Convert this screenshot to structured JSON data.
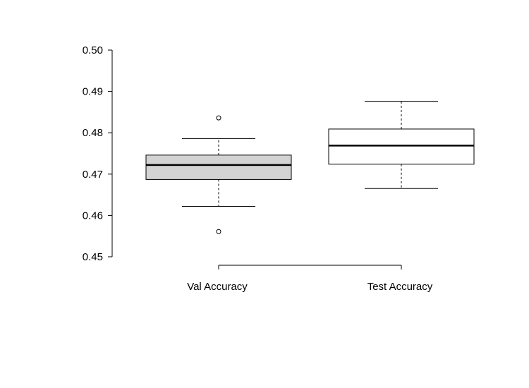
{
  "chart_data": {
    "type": "box",
    "title": "",
    "xlabel": "",
    "ylabel": "",
    "ylim": [
      0.45,
      0.5
    ],
    "yticks": [
      "0.45",
      "0.46",
      "0.47",
      "0.48",
      "0.49",
      "0.50"
    ],
    "grid": false,
    "categories": [
      "Val Accuracy",
      "Test Accuracy"
    ],
    "boxes": [
      {
        "category": "Val Accuracy",
        "whisker_low": 0.4622,
        "q1": 0.4687,
        "median": 0.4722,
        "q3": 0.4746,
        "whisker_high": 0.4786,
        "outliers": [
          0.4836,
          0.4561
        ],
        "fill": "#d3d3d3"
      },
      {
        "category": "Test Accuracy",
        "whisker_low": 0.4665,
        "q1": 0.4724,
        "median": 0.4769,
        "q3": 0.4809,
        "whisker_high": 0.4876,
        "outliers": [],
        "fill": "#ffffff"
      }
    ]
  }
}
